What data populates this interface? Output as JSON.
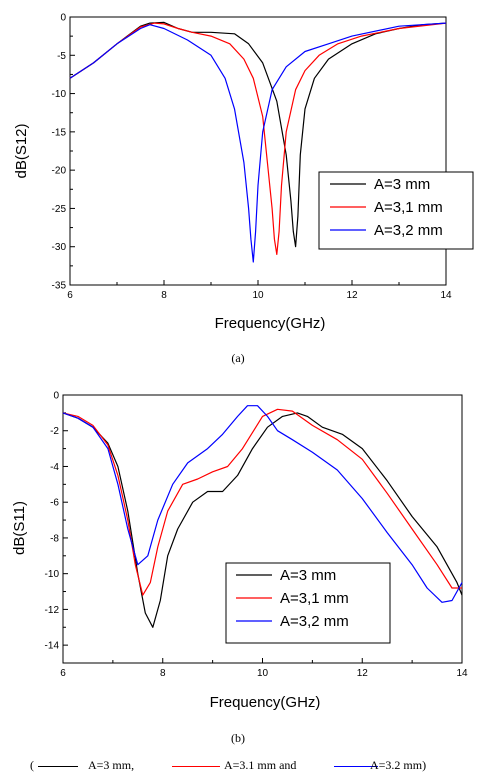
{
  "chart_data": [
    {
      "type": "line",
      "panel_label": "(a)",
      "xlabel": "Frequency(GHz)",
      "ylabel": "dB(S12)",
      "xlim": [
        6,
        14
      ],
      "ylim": [
        -35,
        0
      ],
      "xticks": [
        6,
        8,
        10,
        12,
        14
      ],
      "yticks": [
        0,
        -5,
        -10,
        -15,
        -20,
        -25,
        -30,
        -35
      ],
      "legend_position": "center-right",
      "series": [
        {
          "name": "A=3 mm",
          "color": "#000000",
          "x": [
            6,
            6.5,
            7,
            7.5,
            7.7,
            8,
            8.3,
            8.6,
            9,
            9.5,
            9.8,
            10.1,
            10.4,
            10.6,
            10.7,
            10.75,
            10.8,
            10.85,
            10.9,
            11,
            11.2,
            11.5,
            12,
            12.5,
            13,
            13.5,
            14
          ],
          "y": [
            -8,
            -6,
            -3.5,
            -1.2,
            -0.8,
            -0.7,
            -1.5,
            -2,
            -2,
            -2.2,
            -3.5,
            -6,
            -11,
            -18,
            -24,
            -28,
            -30,
            -26,
            -18,
            -12,
            -8,
            -5.5,
            -3.5,
            -2.2,
            -1.5,
            -1,
            -0.8
          ]
        },
        {
          "name": "A=3,1 mm",
          "color": "#ff0000",
          "x": [
            6,
            6.5,
            7,
            7.5,
            7.8,
            8,
            8.3,
            8.6,
            9,
            9.4,
            9.7,
            9.9,
            10.1,
            10.2,
            10.3,
            10.35,
            10.4,
            10.45,
            10.5,
            10.6,
            10.8,
            11,
            11.3,
            11.7,
            12.2,
            13,
            14
          ],
          "y": [
            -8,
            -6,
            -3.5,
            -1.3,
            -0.8,
            -0.9,
            -1.5,
            -2,
            -2.5,
            -3.5,
            -5.5,
            -8,
            -13,
            -19,
            -25,
            -29,
            -31,
            -28,
            -22,
            -15,
            -9.5,
            -7,
            -5,
            -3.5,
            -2.5,
            -1.5,
            -0.8
          ]
        },
        {
          "name": "A=3,2 mm",
          "color": "#0000ff",
          "x": [
            6,
            6.5,
            7,
            7.5,
            7.7,
            8,
            8.5,
            9,
            9.3,
            9.5,
            9.7,
            9.8,
            9.85,
            9.9,
            9.95,
            10,
            10.1,
            10.3,
            10.6,
            11,
            11.5,
            12,
            13,
            14
          ],
          "y": [
            -8,
            -6,
            -3.5,
            -1.5,
            -1,
            -1.5,
            -3,
            -5,
            -8,
            -12,
            -19,
            -25,
            -29,
            -32,
            -28,
            -22,
            -15,
            -9.5,
            -6.5,
            -4.5,
            -3.5,
            -2.5,
            -1.2,
            -0.8
          ]
        }
      ]
    },
    {
      "type": "line",
      "panel_label": "(b)",
      "xlabel": "Frequency(GHz)",
      "ylabel": "dB(S11)",
      "xlim": [
        6,
        14
      ],
      "ylim": [
        -15,
        0
      ],
      "xticks": [
        6,
        8,
        10,
        12,
        14
      ],
      "yticks": [
        0,
        -2,
        -4,
        -6,
        -8,
        -10,
        -12,
        -14
      ],
      "legend_position": "bottom-center",
      "series": [
        {
          "name": "A=3 mm",
          "color": "#000000",
          "x": [
            6,
            6.3,
            6.6,
            6.9,
            7.1,
            7.3,
            7.5,
            7.65,
            7.8,
            7.95,
            8.1,
            8.3,
            8.6,
            8.9,
            9.2,
            9.5,
            9.8,
            10.1,
            10.4,
            10.7,
            10.9,
            11.2,
            11.6,
            12,
            12.5,
            13,
            13.5,
            13.9,
            14
          ],
          "y": [
            -1,
            -1.3,
            -1.8,
            -2.7,
            -4,
            -6.5,
            -10,
            -12.2,
            -13,
            -11.5,
            -9,
            -7.5,
            -6,
            -5.4,
            -5.4,
            -4.5,
            -3,
            -1.8,
            -1.2,
            -1,
            -1.2,
            -1.8,
            -2.2,
            -3,
            -4.8,
            -6.8,
            -8.5,
            -10.5,
            -11.2
          ]
        },
        {
          "name": "A=3,1 mm",
          "color": "#ff0000",
          "x": [
            6,
            6.3,
            6.6,
            6.9,
            7.1,
            7.3,
            7.45,
            7.6,
            7.75,
            7.9,
            8.1,
            8.4,
            8.7,
            9,
            9.3,
            9.6,
            10,
            10.3,
            10.6,
            11,
            11.5,
            12,
            12.5,
            13,
            13.5,
            13.8,
            14
          ],
          "y": [
            -1,
            -1.2,
            -1.7,
            -2.8,
            -4.5,
            -7,
            -9.5,
            -11.2,
            -10.5,
            -8.5,
            -6.5,
            -5,
            -4.7,
            -4.3,
            -4,
            -3,
            -1.2,
            -0.8,
            -0.9,
            -1.7,
            -2.5,
            -3.6,
            -5.5,
            -7.5,
            -9.5,
            -10.8,
            -10.8
          ]
        },
        {
          "name": "A=3,2 mm",
          "color": "#0000ff",
          "x": [
            6,
            6.3,
            6.6,
            6.9,
            7.1,
            7.3,
            7.5,
            7.7,
            7.9,
            8.2,
            8.5,
            8.9,
            9.2,
            9.5,
            9.7,
            9.9,
            10.1,
            10.3,
            10.6,
            11,
            11.5,
            12,
            12.5,
            13,
            13.3,
            13.6,
            13.8,
            14
          ],
          "y": [
            -1,
            -1.3,
            -1.8,
            -3,
            -5,
            -7.5,
            -9.5,
            -9,
            -7,
            -5,
            -3.8,
            -3,
            -2.2,
            -1.2,
            -0.6,
            -0.6,
            -1.2,
            -2,
            -2.5,
            -3.2,
            -4.2,
            -5.8,
            -7.7,
            -9.5,
            -10.8,
            -11.6,
            -11.5,
            -10.5
          ]
        }
      ]
    }
  ],
  "caption": {
    "open": "(",
    "item1": "A=3 mm,",
    "item2": "A=3.1 mm and",
    "item3": "A=3.2 mm)"
  }
}
